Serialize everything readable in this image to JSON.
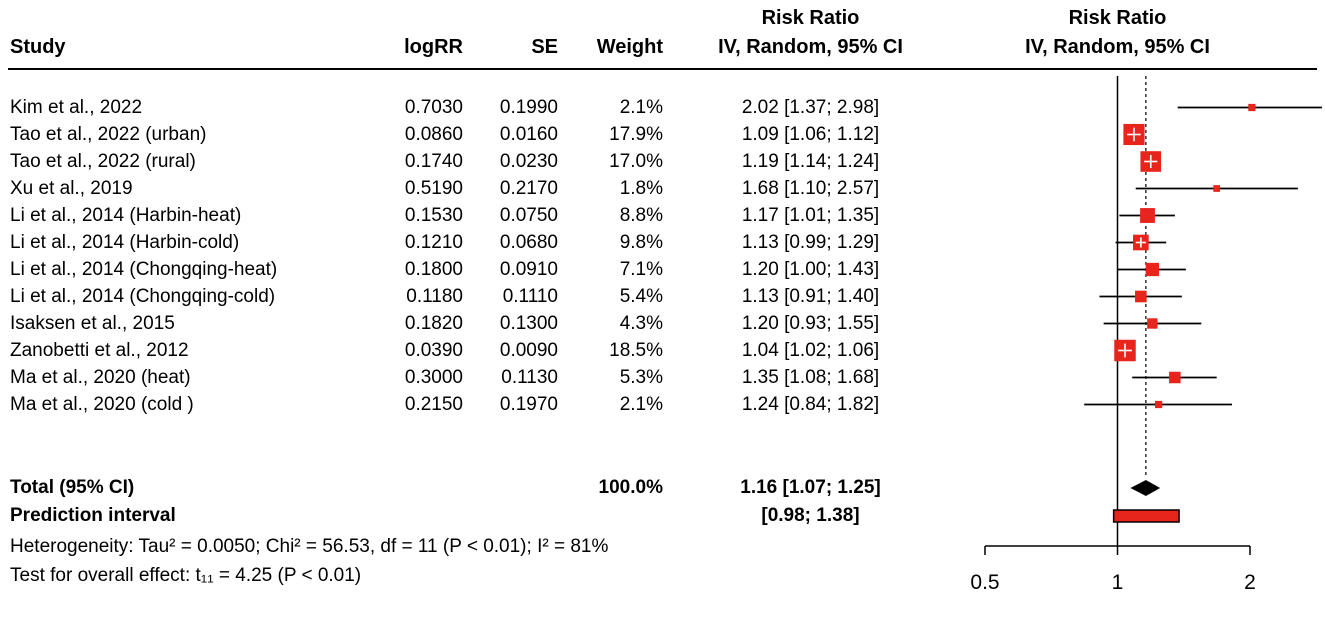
{
  "columns": {
    "study": "Study",
    "logrr": "logRR",
    "se": "SE",
    "weight": "Weight",
    "rr_header": "Risk Ratio",
    "iv_header": "IV, Random, 95% CI"
  },
  "chart_data": {
    "type": "forest",
    "x_scale": "log",
    "x_ticks": [
      0.5,
      1,
      2
    ],
    "x_range": [
      0.5,
      2
    ],
    "studies": [
      {
        "study": "Kim et al., 2022",
        "logrr": "0.7030",
        "se": "0.1990",
        "weight": "2.1%",
        "weight_value": 2.1,
        "rr": 2.02,
        "ci_low": 1.37,
        "ci_high": 2.98,
        "rr_text": "2.02 [1.37; 2.98]"
      },
      {
        "study": "Tao et al., 2022 (urban)",
        "logrr": "0.0860",
        "se": "0.0160",
        "weight": "17.9%",
        "weight_value": 17.9,
        "rr": 1.09,
        "ci_low": 1.06,
        "ci_high": 1.12,
        "rr_text": "1.09 [1.06; 1.12]"
      },
      {
        "study": "Tao et al., 2022 (rural)",
        "logrr": "0.1740",
        "se": "0.0230",
        "weight": "17.0%",
        "weight_value": 17.0,
        "rr": 1.19,
        "ci_low": 1.14,
        "ci_high": 1.24,
        "rr_text": "1.19 [1.14; 1.24]"
      },
      {
        "study": "Xu et al., 2019",
        "logrr": "0.5190",
        "se": "0.2170",
        "weight": "1.8%",
        "weight_value": 1.8,
        "rr": 1.68,
        "ci_low": 1.1,
        "ci_high": 2.57,
        "rr_text": "1.68 [1.10; 2.57]"
      },
      {
        "study": "Li et al., 2014 (Harbin-heat)",
        "logrr": "0.1530",
        "se": "0.0750",
        "weight": "8.8%",
        "weight_value": 8.8,
        "rr": 1.17,
        "ci_low": 1.01,
        "ci_high": 1.35,
        "rr_text": "1.17 [1.01; 1.35]"
      },
      {
        "study": "Li et al., 2014 (Harbin-cold)",
        "logrr": "0.1210",
        "se": "0.0680",
        "weight": "9.8%",
        "weight_value": 9.8,
        "rr": 1.13,
        "ci_low": 0.99,
        "ci_high": 1.29,
        "rr_text": "1.13 [0.99; 1.29]"
      },
      {
        "study": "Li et al., 2014 (Chongqing-heat)",
        "logrr": "0.1800",
        "se": "0.0910",
        "weight": "7.1%",
        "weight_value": 7.1,
        "rr": 1.2,
        "ci_low": 1.0,
        "ci_high": 1.43,
        "rr_text": "1.20 [1.00; 1.43]"
      },
      {
        "study": "Li et al., 2014 (Chongqing-cold)",
        "logrr": "0.1180",
        "se": "0.1110",
        "weight": "5.4%",
        "weight_value": 5.4,
        "rr": 1.13,
        "ci_low": 0.91,
        "ci_high": 1.4,
        "rr_text": "1.13 [0.91; 1.40]"
      },
      {
        "study": "Isaksen et al., 2015",
        "logrr": "0.1820",
        "se": "0.1300",
        "weight": "4.3%",
        "weight_value": 4.3,
        "rr": 1.2,
        "ci_low": 0.93,
        "ci_high": 1.55,
        "rr_text": "1.20 [0.93; 1.55]"
      },
      {
        "study": "Zanobetti et al., 2012",
        "logrr": "0.0390",
        "se": "0.0090",
        "weight": "18.5%",
        "weight_value": 18.5,
        "rr": 1.04,
        "ci_low": 1.02,
        "ci_high": 1.06,
        "rr_text": "1.04 [1.02; 1.06]"
      },
      {
        "study": "Ma et al., 2020 (heat)",
        "logrr": "0.3000",
        "se": "0.1130",
        "weight": "5.3%",
        "weight_value": 5.3,
        "rr": 1.35,
        "ci_low": 1.08,
        "ci_high": 1.68,
        "rr_text": "1.35 [1.08; 1.68]"
      },
      {
        "study": "Ma et al., 2020 (cold )",
        "logrr": "0.2150",
        "se": "0.1970",
        "weight": "2.1%",
        "weight_value": 2.1,
        "rr": 1.24,
        "ci_low": 0.84,
        "ci_high": 1.82,
        "rr_text": "1.24 [0.84; 1.82]"
      }
    ],
    "total": {
      "label": "Total (95% CI)",
      "weight": "100.0%",
      "rr": 1.16,
      "ci_low": 1.07,
      "ci_high": 1.25,
      "rr_text": "1.16 [1.07; 1.25]"
    },
    "prediction": {
      "label": "Prediction interval",
      "low": 0.98,
      "high": 1.38,
      "text": "[0.98; 1.38]"
    },
    "heterogeneity": "Heterogeneity: Tau² = 0.0050; Chi² = 56.53, df = 11 (P < 0.01); I² = 81%",
    "overall_test": "Test for overall effect: t₁₁ = 4.25 (P < 0.01)",
    "colors": {
      "square": "#e8251d",
      "diamond": "#000000",
      "prediction_fill": "#e8251d",
      "line": "#000000"
    }
  }
}
